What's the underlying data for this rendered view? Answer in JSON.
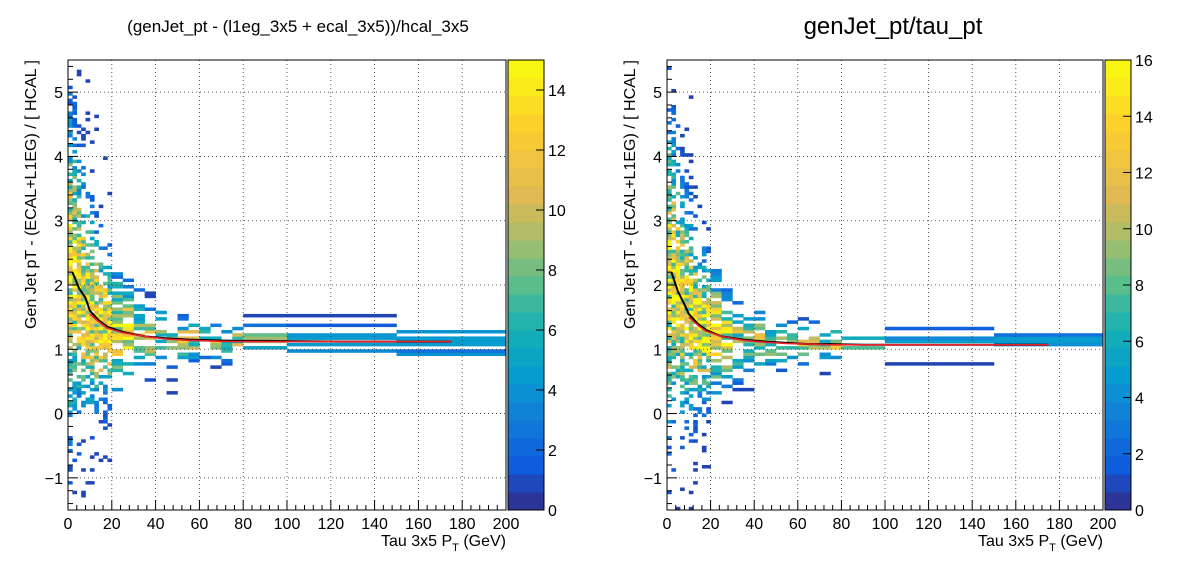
{
  "chart_data": [
    {
      "type": "heatmap",
      "title": "(genJet_pt - (l1eg_3x5 + ecal_3x5))/hcal_3x5",
      "xlabel_main": "Tau 3x5 P",
      "xlabel_sub": "T",
      "xlabel_unit": " (GeV)",
      "ylabel": "Gen Jet pT - (ECAL+L1EG) / [ HCAL ]",
      "xlim": [
        0,
        200
      ],
      "ylim": [
        -1.5,
        5.5
      ],
      "xticks": [
        "0",
        "20",
        "40",
        "60",
        "80",
        "100",
        "120",
        "140",
        "160",
        "180",
        "200"
      ],
      "yticks": [
        "−1",
        "0",
        "1",
        "2",
        "3",
        "4",
        "5"
      ],
      "colorbar": {
        "zlim": [
          0,
          15
        ],
        "ticks": [
          "0",
          "2",
          "4",
          "6",
          "8",
          "10",
          "12",
          "14"
        ]
      },
      "grid": true,
      "series": [
        {
          "style": "black",
          "x": [
            2,
            5,
            8,
            10,
            14,
            18,
            25,
            35,
            45,
            55,
            65,
            75,
            90,
            125,
            175
          ],
          "y": [
            2.2,
            1.95,
            1.8,
            1.6,
            1.45,
            1.35,
            1.27,
            1.2,
            1.17,
            1.15,
            1.14,
            1.13,
            1.13,
            1.12,
            1.12
          ]
        },
        {
          "style": "red",
          "x": [
            10,
            14,
            18,
            25,
            35,
            45,
            55,
            65,
            75,
            90,
            125,
            175
          ],
          "y": [
            1.55,
            1.43,
            1.33,
            1.26,
            1.2,
            1.16,
            1.14,
            1.13,
            1.12,
            1.12,
            1.12,
            1.12
          ]
        }
      ]
    },
    {
      "type": "heatmap",
      "title": "genJet_pt/tau_pt",
      "xlabel_main": "Tau 3x5 P",
      "xlabel_sub": "T",
      "xlabel_unit": " (GeV)",
      "ylabel": "Gen Jet pT - (ECAL+L1EG) / [ HCAL ]",
      "xlim": [
        0,
        200
      ],
      "ylim": [
        -1.5,
        5.5
      ],
      "xticks": [
        "0",
        "20",
        "40",
        "60",
        "80",
        "100",
        "120",
        "140",
        "160",
        "180",
        "200"
      ],
      "yticks": [
        "−1",
        "0",
        "1",
        "2",
        "3",
        "4",
        "5"
      ],
      "colorbar": {
        "zlim": [
          0,
          16
        ],
        "ticks": [
          "0",
          "2",
          "4",
          "6",
          "8",
          "10",
          "12",
          "14",
          "16"
        ]
      },
      "grid": true,
      "series": [
        {
          "style": "black",
          "x": [
            2,
            5,
            8,
            10,
            14,
            18,
            25,
            35,
            45,
            55,
            65,
            75,
            90,
            125,
            175
          ],
          "y": [
            2.2,
            1.9,
            1.7,
            1.55,
            1.4,
            1.3,
            1.2,
            1.15,
            1.12,
            1.1,
            1.08,
            1.08,
            1.07,
            1.07,
            1.07
          ]
        },
        {
          "style": "red",
          "x": [
            10,
            14,
            18,
            25,
            35,
            45,
            55,
            65,
            75,
            90,
            125,
            175
          ],
          "y": [
            1.5,
            1.38,
            1.28,
            1.2,
            1.14,
            1.11,
            1.09,
            1.08,
            1.07,
            1.07,
            1.07,
            1.07
          ]
        }
      ]
    }
  ]
}
